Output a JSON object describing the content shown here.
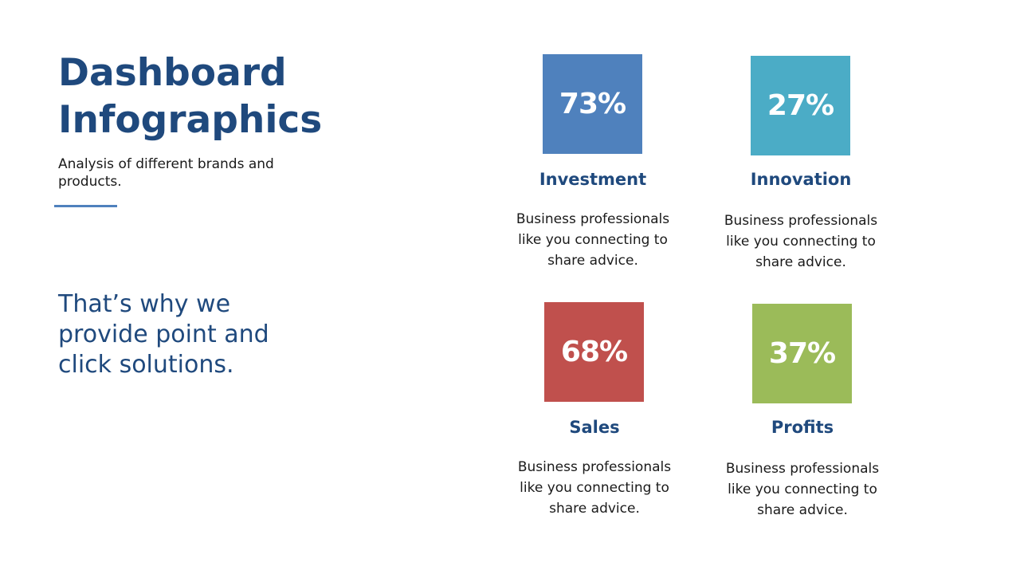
{
  "header": {
    "title_line1": "Dashboard",
    "title_line2": "Infographics",
    "subtitle": "Analysis of different brands and products.",
    "accent_color": "#4f81bd"
  },
  "tagline": "That’s why we provide point and click solutions.",
  "kpis": [
    {
      "value": "73%",
      "label": "Investment",
      "description": "Business professionals like you connecting to share advice.",
      "color": "#4f81bd"
    },
    {
      "value": "27%",
      "label": "Innovation",
      "description": "Business professionals like you connecting to share advice.",
      "color": "#4bacc6"
    },
    {
      "value": "68%",
      "label": "Sales",
      "description": "Business professionals like you connecting to share advice.",
      "color": "#c0504d"
    },
    {
      "value": "37%",
      "label": "Profits",
      "description": "Business professionals like you connecting to share advice.",
      "color": "#9bbb59"
    }
  ]
}
